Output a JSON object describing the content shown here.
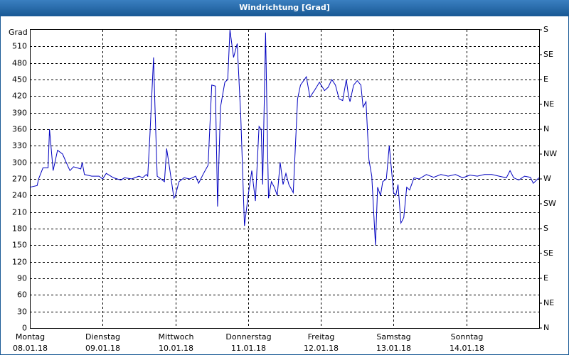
{
  "chart_data": {
    "type": "line",
    "title": "Windrichtung [Grad]",
    "y_label": "Grad",
    "xlim": [
      0,
      7
    ],
    "ylim": [
      0,
      540
    ],
    "y2lim": [
      0,
      540
    ],
    "grid": true,
    "xticks": [
      {
        "value": 0,
        "label": "Montag",
        "date": "08.01.18"
      },
      {
        "value": 1,
        "label": "Dienstag",
        "date": "09.01.18"
      },
      {
        "value": 2,
        "label": "Mittwoch",
        "date": "10.01.18"
      },
      {
        "value": 3,
        "label": "Donnerstag",
        "date": "11.01.18"
      },
      {
        "value": 4,
        "label": "Freitag",
        "date": "12.01.18"
      },
      {
        "value": 5,
        "label": "Samstag",
        "date": "13.01.18"
      },
      {
        "value": 6,
        "label": "Sonntag",
        "date": "14.01.18"
      }
    ],
    "yticks": [
      0,
      30,
      60,
      90,
      120,
      150,
      180,
      210,
      240,
      270,
      300,
      330,
      360,
      390,
      420,
      450,
      480,
      510
    ],
    "y2ticks": [
      {
        "value": 0,
        "label": "N"
      },
      {
        "value": 45,
        "label": "NE"
      },
      {
        "value": 90,
        "label": "E"
      },
      {
        "value": 135,
        "label": "SE"
      },
      {
        "value": 180,
        "label": "S"
      },
      {
        "value": 225,
        "label": "SW"
      },
      {
        "value": 270,
        "label": "W"
      },
      {
        "value": 315,
        "label": "NW"
      },
      {
        "value": 360,
        "label": "N"
      },
      {
        "value": 405,
        "label": "NE"
      },
      {
        "value": 450,
        "label": "E"
      },
      {
        "value": 495,
        "label": "SE"
      },
      {
        "value": 540,
        "label": "S"
      }
    ],
    "series": [
      {
        "color": "#0000c0",
        "x": [
          0,
          0.1,
          0.12,
          0.18,
          0.25,
          0.27,
          0.32,
          0.38,
          0.45,
          0.5,
          0.55,
          0.6,
          0.65,
          0.7,
          0.72,
          0.75,
          0.85,
          0.95,
          1.0,
          1.05,
          1.15,
          1.25,
          1.3,
          1.4,
          1.5,
          1.55,
          1.6,
          1.62,
          1.65,
          1.7,
          1.72,
          1.75,
          1.8,
          1.85,
          1.88,
          1.92,
          1.98,
          2.0,
          2.05,
          2.12,
          2.2,
          2.28,
          2.32,
          2.38,
          2.45,
          2.5,
          2.55,
          2.58,
          2.62,
          2.68,
          2.72,
          2.75,
          2.8,
          2.85,
          2.9,
          2.95,
          3.0,
          3.05,
          3.1,
          3.15,
          3.18,
          3.2,
          3.24,
          3.28,
          3.32,
          3.36,
          3.4,
          3.44,
          3.48,
          3.52,
          3.56,
          3.62,
          3.68,
          3.72,
          3.8,
          3.85,
          3.92,
          3.98,
          4.05,
          4.1,
          4.15,
          4.2,
          4.25,
          4.3,
          4.35,
          4.38,
          4.4,
          4.45,
          4.5,
          4.55,
          4.58,
          4.62,
          4.66,
          4.7,
          4.75,
          4.78,
          4.82,
          4.85,
          4.9,
          4.94,
          5.0,
          5.03,
          5.06,
          5.1,
          5.14,
          5.18,
          5.22,
          5.28,
          5.35,
          5.45,
          5.55,
          5.65,
          5.75,
          5.85,
          5.95,
          6.05,
          6.15,
          6.25,
          6.35,
          6.45,
          6.55,
          6.6,
          6.65,
          6.72,
          6.8,
          6.88,
          6.92,
          6.98,
          7.0
        ],
        "values": [
          255,
          258,
          270,
          290,
          290,
          360,
          285,
          322,
          315,
          300,
          285,
          292,
          290,
          288,
          300,
          278,
          275,
          275,
          270,
          280,
          272,
          268,
          272,
          270,
          275,
          272,
          278,
          275,
          350,
          490,
          400,
          275,
          270,
          265,
          325,
          290,
          235,
          240,
          265,
          272,
          270,
          275,
          262,
          278,
          295,
          440,
          438,
          220,
          400,
          445,
          450,
          540,
          490,
          515,
          380,
          185,
          240,
          285,
          230,
          365,
          360,
          260,
          535,
          235,
          265,
          255,
          240,
          300,
          260,
          280,
          260,
          245,
          415,
          440,
          455,
          418,
          432,
          445,
          430,
          436,
          450,
          440,
          415,
          412,
          450,
          420,
          410,
          440,
          448,
          440,
          400,
          410,
          305,
          275,
          150,
          255,
          240,
          265,
          270,
          330,
          245,
          240,
          260,
          190,
          200,
          255,
          250,
          272,
          270,
          278,
          273,
          278,
          275,
          278,
          272,
          277,
          275,
          278,
          278,
          275,
          272,
          285,
          272,
          268,
          275,
          273,
          262,
          270,
          272
        ]
      }
    ]
  }
}
